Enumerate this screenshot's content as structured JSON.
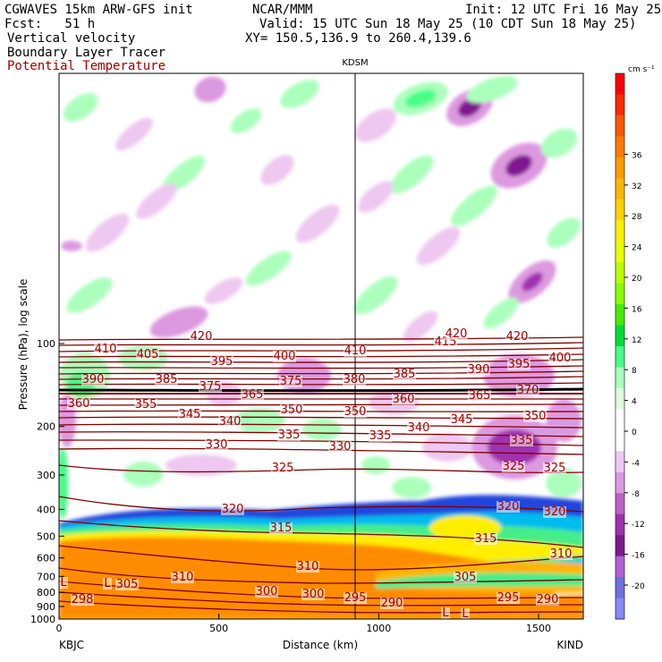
{
  "header": {
    "model": "CGWAVES 15km ARW-GFS init",
    "org": "NCAR/MMM",
    "init": "Init: 12 UTC Fri 16 May 25",
    "fcst": "Fcst:   51 h",
    "valid": "Valid: 15 UTC Sun 18 May 25 (10 CDT Sun 18 May 25)",
    "field1": "Vertical velocity",
    "xy": "XY= 150.5,136.9 to 260.4,139.6",
    "field2": "Boundary Layer Tracer",
    "field3": "Potential Temperature"
  },
  "chart_data": {
    "type": "heatmap",
    "xlabel": "Distance (km)",
    "ylabel": "Pressure (hPa), log scale",
    "x_ticks": [
      0,
      500,
      1000,
      1500
    ],
    "xlim": [
      0,
      1640
    ],
    "y_ticks": [
      100,
      200,
      300,
      400,
      500,
      600,
      700,
      800,
      900,
      1000
    ],
    "y_scale": "log",
    "endpoints": {
      "left": "KBJC",
      "right": "KIND"
    },
    "marker": {
      "label": "KDSM",
      "x": 935
    },
    "colorbar": {
      "units": "cm s⁻¹",
      "ticks": [
        36,
        32,
        28,
        24,
        20,
        16,
        12,
        8,
        4,
        0,
        -4,
        -8,
        -12,
        -16,
        -20
      ],
      "colors": [
        "#ff0000",
        "#ff2a00",
        "#ff5500",
        "#ff7a00",
        "#ff9a00",
        "#ffb400",
        "#ffd000",
        "#ffee00",
        "#e8ff00",
        "#b8ff00",
        "#88ff00",
        "#44ee00",
        "#00dd33",
        "#44ff88",
        "#aaffbb",
        "#ddffdd",
        "#ffffff",
        "#ffffff",
        "#eec8f0",
        "#dd99e0",
        "#c060c8",
        "#a030b0",
        "#801890",
        "#b060d8",
        "#7070e0",
        "#8888ff"
      ]
    },
    "theta_labels": [
      {
        "v": "420",
        "x": 225,
        "y": 380
      },
      {
        "v": "415",
        "x": 498,
        "y": 386
      },
      {
        "v": "420",
        "x": 510,
        "y": 377
      },
      {
        "v": "420",
        "x": 578,
        "y": 380
      },
      {
        "v": "410",
        "x": 118,
        "y": 394
      },
      {
        "v": "405",
        "x": 165,
        "y": 400
      },
      {
        "v": "395",
        "x": 248,
        "y": 408
      },
      {
        "v": "400",
        "x": 318,
        "y": 402
      },
      {
        "v": "410",
        "x": 397,
        "y": 396
      },
      {
        "v": "390",
        "x": 535,
        "y": 417
      },
      {
        "v": "395",
        "x": 580,
        "y": 411
      },
      {
        "v": "400",
        "x": 626,
        "y": 404
      },
      {
        "v": "390",
        "x": 104,
        "y": 428
      },
      {
        "v": "385",
        "x": 186,
        "y": 428
      },
      {
        "v": "375",
        "x": 235,
        "y": 436
      },
      {
        "v": "375",
        "x": 325,
        "y": 430
      },
      {
        "v": "380",
        "x": 396,
        "y": 428
      },
      {
        "v": "385",
        "x": 452,
        "y": 422
      },
      {
        "v": "360",
        "x": 88,
        "y": 455
      },
      {
        "v": "355",
        "x": 163,
        "y": 456
      },
      {
        "v": "365",
        "x": 282,
        "y": 445
      },
      {
        "v": "360",
        "x": 451,
        "y": 450
      },
      {
        "v": "365",
        "x": 536,
        "y": 446
      },
      {
        "v": "370",
        "x": 590,
        "y": 440
      },
      {
        "v": "345",
        "x": 212,
        "y": 467
      },
      {
        "v": "350",
        "x": 326,
        "y": 462
      },
      {
        "v": "350",
        "x": 397,
        "y": 464
      },
      {
        "v": "345",
        "x": 516,
        "y": 473
      },
      {
        "v": "350",
        "x": 598,
        "y": 469
      },
      {
        "v": "340",
        "x": 257,
        "y": 475
      },
      {
        "v": "340",
        "x": 468,
        "y": 482
      },
      {
        "v": "335",
        "x": 323,
        "y": 490
      },
      {
        "v": "335",
        "x": 425,
        "y": 491
      },
      {
        "v": "335",
        "x": 583,
        "y": 496
      },
      {
        "v": "330",
        "x": 242,
        "y": 501
      },
      {
        "v": "330",
        "x": 380,
        "y": 503
      },
      {
        "v": "325",
        "x": 316,
        "y": 527
      },
      {
        "v": "325",
        "x": 574,
        "y": 525
      },
      {
        "v": "325",
        "x": 620,
        "y": 527
      },
      {
        "v": "320",
        "x": 260,
        "y": 573
      },
      {
        "v": "320",
        "x": 568,
        "y": 570
      },
      {
        "v": "320",
        "x": 620,
        "y": 576
      },
      {
        "v": "315",
        "x": 314,
        "y": 594
      },
      {
        "v": "315",
        "x": 543,
        "y": 606
      },
      {
        "v": "310",
        "x": 627,
        "y": 623
      },
      {
        "v": "310",
        "x": 344,
        "y": 637
      },
      {
        "v": "310",
        "x": 204,
        "y": 649
      },
      {
        "v": "305",
        "x": 142,
        "y": 657
      },
      {
        "v": "305",
        "x": 520,
        "y": 649
      },
      {
        "v": "300",
        "x": 298,
        "y": 665
      },
      {
        "v": "300",
        "x": 350,
        "y": 668
      },
      {
        "v": "295",
        "x": 397,
        "y": 672
      },
      {
        "v": "290",
        "x": 438,
        "y": 678
      },
      {
        "v": "295",
        "x": 568,
        "y": 672
      },
      {
        "v": "290",
        "x": 612,
        "y": 674
      },
      {
        "v": "298",
        "x": 92,
        "y": 674
      },
      {
        "v": "L",
        "x": 71,
        "y": 655
      },
      {
        "v": "L",
        "x": 120,
        "y": 656
      },
      {
        "v": "L",
        "x": 498,
        "y": 689
      },
      {
        "v": "L",
        "x": 520,
        "y": 690
      }
    ]
  }
}
